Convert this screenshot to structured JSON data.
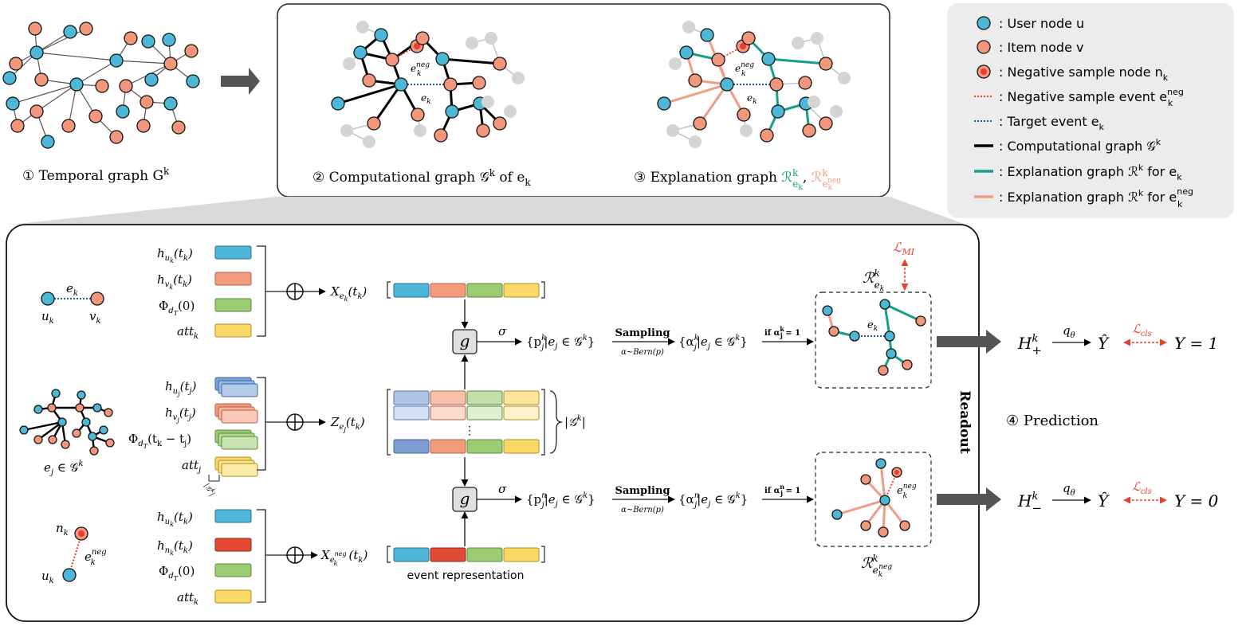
{
  "colors": {
    "user": "#4cb8d6",
    "item": "#f2977c",
    "negative": "#e8402f",
    "teal": "#15a086",
    "salmon": "#f19c84",
    "gray_node": "#d4d4d4",
    "blue_bar": "#4db6d9",
    "orange_bar": "#f29a7c",
    "green_bar": "#9bcb73",
    "yellow_bar": "#fbd968",
    "red_bar": "#e24a33",
    "mi_red": "#e8402f"
  },
  "panels": {
    "temporal_caption": "① Temporal graph G",
    "temporal_sup": "k",
    "computational_caption": "② Computational graph 𝒢",
    "computational_sup": "k",
    "computational_tail": " of e",
    "computational_sub": "k",
    "explanation_caption": "③ Explanation graph ",
    "explanation_r1": "ℛ",
    "explanation_r1_sup": "k",
    "explanation_r1_sub": "e",
    "explanation_r1_subsub": "k",
    "explanation_comma": ", ",
    "explanation_r2": "ℛ",
    "explanation_r2_sup": "k",
    "explanation_r2_sub": "e",
    "explanation_r2_subsub": "k",
    "explanation_r2_subsup": "neg"
  },
  "legend": {
    "user_node": ": User node u",
    "item_node": ": Item node v",
    "negative_node": ": Negative sample node n",
    "negative_node_sub": "k",
    "negative_event": ": Negative sample event e",
    "negative_event_sub": "k",
    "negative_event_sup": "neg",
    "target_event": ": Target event e",
    "target_event_sub": "k",
    "computational_graph": ": Computational graph 𝒢",
    "computational_graph_sup": "k",
    "expl_ek": ": Explanation graph ℛ",
    "expl_ek_sup": "k",
    "expl_ek_tail": " for e",
    "expl_ek_sub": "k",
    "expl_neg": ": Explanation graph ℛ",
    "expl_neg_sup": "k",
    "expl_neg_tail": " for e",
    "expl_neg_sub": "k",
    "expl_neg_subsup": "neg"
  },
  "labels": {
    "e_k": "e",
    "k": "k",
    "neg": "neg",
    "u_k": "u",
    "v_k": "v",
    "n_k": "n",
    "e_j_in_G": "e",
    "e_j_sub": "j",
    "in_G": " ∈ 𝒢",
    "in_G_sup": "k",
    "h_uk": "h",
    "h_vk": "h",
    "phi_0": "Φ",
    "phi_0_sub": "d",
    "phi_0_subsub": "T",
    "phi_0_arg": "(0)",
    "att_k": "att",
    "h_uj": "h",
    "h_vj": "h",
    "phi_tj": "Φ",
    "phi_tj_arg": "(t",
    "phi_tj_arg2": " − t",
    "att_j": "att",
    "h_nk": "h",
    "x_ek": "X",
    "z_ej": "Z",
    "x_eneg": "X",
    "g": "g",
    "sigma": "σ",
    "sampling": "Sampling",
    "bern": "α~Bern(p)",
    "p_pos": "{p",
    "p_neg": "{p",
    "alpha_pos": "{α",
    "alpha_neg": "{α",
    "if_pos": "if α",
    "if_neg": "if α",
    "eq1": " = 1",
    "set_tail": "|e",
    "set_tail2": " ∈ 𝒢",
    "set_close": "}",
    "card_G": "|𝒢",
    "card_close": "|",
    "vdots": "⋮",
    "event_representation": "event representation",
    "readout": "Readout",
    "prediction": "④ Prediction",
    "loss_mi": "ℒ",
    "loss_mi_sub": "MI",
    "loss_cls": "ℒ",
    "loss_cls_sub": "cls",
    "H_pos": "H",
    "H_neg": "H",
    "plus": "+",
    "minus": "−",
    "q_theta": "q",
    "theta": "θ",
    "y_hat": "Ŷ",
    "Y1": "Y = 1",
    "Y0": "Y = 0",
    "R_pos": "ℛ",
    "R_neg": "ℛ",
    "n_sup": "n",
    "tk": "(t",
    "tk_close": ")",
    "oplus": "⊕"
  }
}
